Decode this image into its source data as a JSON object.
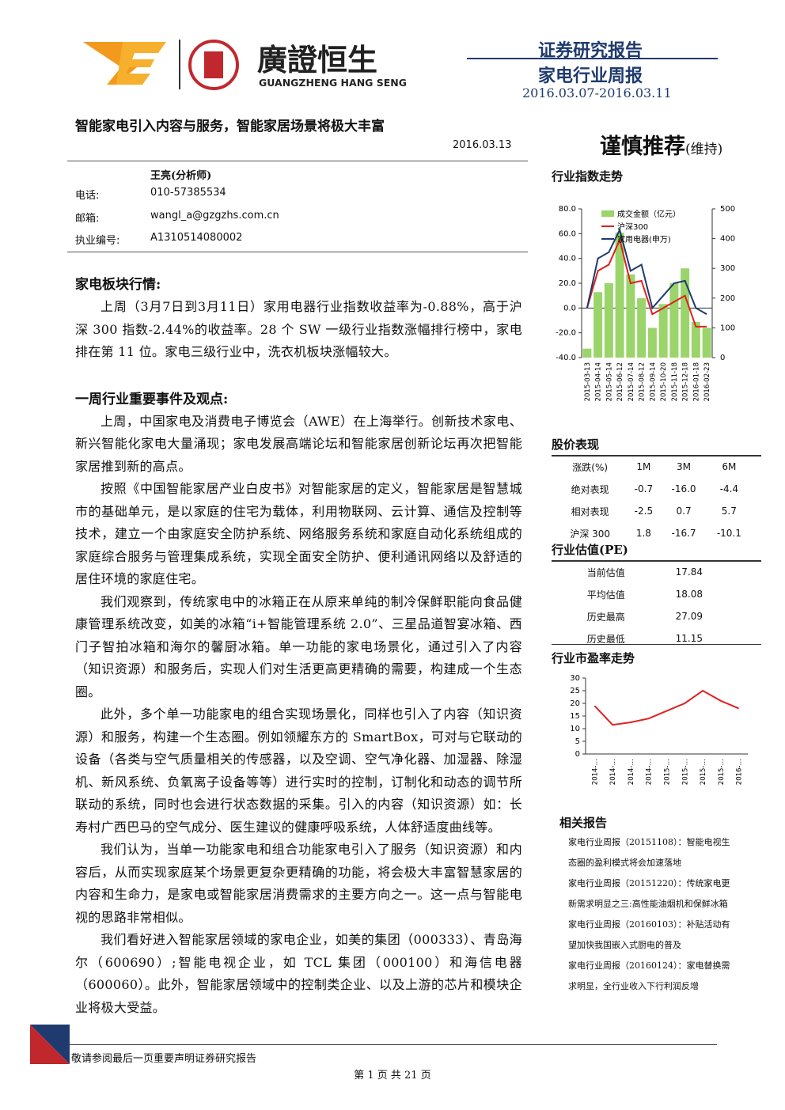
{
  "header": {
    "logo_cn": "廣證恒生",
    "logo_en": "GUANGZHENG HANG SENG",
    "report_type": "证券研究报告",
    "report_name": "家电行业周报",
    "period": "2016.03.07-2016.03.11"
  },
  "title": "智能家电引入内容与服务，智能家居场景将极大丰富",
  "date": "2016.03.13",
  "rating": {
    "text": "谨慎推荐",
    "note": "(维持)"
  },
  "analyst": {
    "name": "王亮(分析师)",
    "rows": [
      [
        "电话:",
        "010-57385534"
      ],
      [
        "邮箱:",
        "wangl_a@gzgzhs.com.cn"
      ],
      [
        "执业编号:",
        "A1310514080002"
      ]
    ]
  },
  "sections": [
    {
      "heading": "家电板块行情:",
      "paragraphs": [
        "上周（3月7日到3月11日）家用电器行业指数收益率为-0.88%，高于沪深 300 指数-2.44%的收益率。28 个 SW 一级行业指数涨幅排行榜中，家电排在第 11 位。家电三级行业中，洗衣机板块涨幅较大。"
      ]
    },
    {
      "heading": "一周行业重要事件及观点:",
      "paragraphs": [
        "上周，中国家电及消费电子博览会（AWE）在上海举行。创新技术家电、新兴智能化家电大量涌现；家电发展高端论坛和智能家居创新论坛再次把智能家居推到新的高点。",
        "按照《中国智能家居产业白皮书》对智能家居的定义，智能家居是智慧城市的基础单元，是以家庭的住宅为载体，利用物联网、云计算、通信及控制等技术，建立一个由家庭安全防护系统、网络服务系统和家庭自动化系统组成的家庭综合服务与管理集成系统，实现全面安全防护、便利通讯网络以及舒适的居住环境的家庭住宅。",
        "我们观察到，传统家电中的冰箱正在从原来单纯的制冷保鲜职能向食品健康管理系统改变，如美的冰箱“i+智能管理系统 2.0”、三星品道智宴冰箱、西门子智拍冰箱和海尔的馨厨冰箱。单一功能的家电场景化，通过引入了内容（知识资源）和服务后，实现人们对生活更高更精确的需要，构建成一个生态圈。",
        "此外，多个单一功能家电的组合实现场景化，同样也引入了内容（知识资源）和服务，构建一个生态圈。例如领耀东方的 SmartBox，可对与它联动的设备（各类与空气质量相关的传感器，以及空调、空气净化器、加湿器、除湿机、新风系统、负氧离子设备等等）进行实时的控制，订制化和动态的调节所联动的系统，同时也会进行状态数据的采集。引入的内容（知识资源）如：长寿村广西巴马的空气成分、医生建议的健康呼吸系统，人体舒适度曲线等。",
        "我们认为，当单一功能家电和组合功能家电引入了服务（知识资源）和内容后，从而实现家庭某个场景更复杂更精确的功能，将会极大丰富智慧家居的内容和生命力，是家电或智能家居消费需求的主要方向之一。这一点与智能电视的思路非常相似。",
        "我们看好进入智能家居领域的家电企业，如美的集团（000333）、青岛海尔（600690）;智能电视企业，如 TCL 集团（000100）和海信电器（600060）。此外，智能家居领域中的控制类企业、以及上游的芯片和模块企业将极大受益。"
      ]
    }
  ],
  "index_chart": {
    "type": "combo",
    "title": "行业指数走势",
    "categories": [
      "2015-03-13",
      "2015-04-14",
      "2015-05-14",
      "2015-06-12",
      "2015-07-14",
      "2015-08-12",
      "2015-09-14",
      "2015-10-20",
      "2015-11-18",
      "2015-12-18",
      "2016-01-18",
      "2016-02-23"
    ],
    "series": [
      {
        "name": "成交金额（亿元）",
        "type": "bar",
        "axis": "y2",
        "color": "#9bd46a",
        "values": [
          30,
          220,
          250,
          420,
          280,
          200,
          100,
          180,
          250,
          300,
          120,
          100
        ]
      },
      {
        "name": "沪深300",
        "type": "line",
        "color": "#e02020",
        "values": [
          0,
          30,
          35,
          55,
          20,
          22,
          -5,
          0,
          5,
          10,
          -15,
          -15
        ]
      },
      {
        "name": "家用电器(申万)",
        "type": "line",
        "color": "#1f3a6e",
        "values": [
          0,
          40,
          45,
          63,
          30,
          35,
          0,
          10,
          20,
          22,
          0,
          -5
        ]
      }
    ],
    "ylim": [
      -40,
      80
    ],
    "yticks": [
      {
        "value": -40,
        "label": "-40.0"
      },
      {
        "value": -20,
        "label": "-20.0"
      },
      {
        "value": 0,
        "label": "0.0"
      },
      {
        "value": 20,
        "label": "20.0"
      },
      {
        "value": 40,
        "label": "40.0"
      },
      {
        "value": 60,
        "label": "60.0"
      },
      {
        "value": 80,
        "label": "80.0"
      }
    ],
    "y2lim": [
      0,
      500
    ],
    "y2ticks": [
      0,
      100,
      200,
      300,
      400,
      500
    ]
  },
  "stock_table": {
    "title": "股价表现",
    "header": [
      "涨跌(%)",
      "1M",
      "3M",
      "6M"
    ],
    "rows": [
      [
        "绝对表现",
        "-0.7",
        "-16.0",
        "-4.4"
      ],
      [
        "相对表现",
        "-2.5",
        "0.7",
        "5.7"
      ],
      [
        "沪深 300",
        "1.8",
        "-16.7",
        "-10.1"
      ]
    ]
  },
  "pe_table": {
    "title": "行业估值(PE)",
    "rows": [
      [
        "当前估值",
        "17.84"
      ],
      [
        "平均估值",
        "18.08"
      ],
      [
        "历史最高",
        "27.09"
      ],
      [
        "历史最低",
        "11.15"
      ]
    ]
  },
  "pe_chart": {
    "type": "line",
    "title": "行业市盈率走势",
    "categories": [
      "2014-…",
      "2014-…",
      "2014-…",
      "2014-…",
      "2015-…",
      "2015-…",
      "2015-…",
      "2015-…",
      "2016-…"
    ],
    "values": [
      19,
      11.5,
      12.5,
      14,
      17,
      20,
      25,
      21,
      18
    ],
    "color": "#e02020",
    "ylim": [
      0,
      30
    ],
    "yticks": [
      0,
      5,
      10,
      15,
      20,
      25,
      30
    ]
  },
  "related": {
    "title": "相关报告",
    "items": [
      "家电行业周报（20151108）：智能电视生态圈的盈利模式将会加速落地",
      "家电行业周报（20151220）：传统家电更新需求明显之三:高性能油烟机和保鲜冰箱",
      "家电行业周报（20160103）：补贴活动有望加快我国嵌入式厨电的普及",
      "家电行业周报（20160124）：家电替换需求明显，全行业收入下行利润反增"
    ]
  },
  "footer": {
    "disclaimer": "敬请参阅最后一页重要声明证券研究报告",
    "page": "第 1 页 共 21 页"
  }
}
